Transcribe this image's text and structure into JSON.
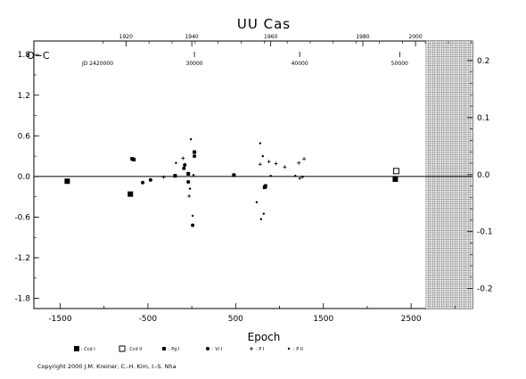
{
  "chart_data": {
    "type": "scatter",
    "title": "UU Cas",
    "ylabel": "O−C",
    "xlabel": "Epoch",
    "xlim": [
      -1800,
      3200
    ],
    "ylim": [
      -1.95,
      2.0
    ],
    "grid": false,
    "x_ticks": [
      "-1500",
      "-500",
      "500",
      "1500",
      "2500"
    ],
    "x_tick_values": [
      -1500,
      -500,
      500,
      1500,
      2500
    ],
    "y_ticks": [
      "1.8",
      "1.2",
      "0.6",
      "0.0",
      "-0.6",
      "-1.2",
      "-1.8"
    ],
    "y_tick_values": [
      1.8,
      1.2,
      0.6,
      0.0,
      -0.6,
      -1.2,
      -1.8
    ],
    "top_axis": {
      "year_ticks": [
        "1920",
        "1940",
        "1960",
        "1980",
        "2000"
      ],
      "year_epochs": [
        -750,
        0,
        900,
        1950,
        2550
      ],
      "jd_prefix": "JD 2420000",
      "jd_ticks": [
        "30000",
        "40000",
        "50000"
      ],
      "jd_epochs": [
        30,
        1230,
        2370
      ]
    },
    "right_axis": {
      "ticks": [
        "0.2",
        "0.1",
        "0.0",
        "-0.1",
        "-0.2"
      ],
      "values": [
        0.2,
        0.1,
        0.0,
        -0.1,
        -0.2
      ]
    },
    "hatched_region": [
      2670,
      3200
    ],
    "series": [
      {
        "name": "Ccd I",
        "marker": "filled-square",
        "points": [
          [
            -1420,
            -0.07
          ],
          [
            -700,
            -0.26
          ],
          [
            2320,
            -0.04
          ]
        ]
      },
      {
        "name": "Ccd II",
        "marker": "open-square",
        "points": [
          [
            2330,
            0.08
          ]
        ]
      },
      {
        "name": "Pg I",
        "marker": "small-filled-square",
        "points": [
          [
            -680,
            0.26
          ],
          [
            -660,
            0.25
          ],
          [
            -190,
            0.01
          ],
          [
            -40,
            0.04
          ],
          [
            30,
            0.36
          ],
          [
            480,
            0.02
          ],
          [
            830,
            -0.16
          ],
          [
            840,
            -0.14
          ]
        ]
      },
      {
        "name": "Vi I",
        "marker": "filled-circle",
        "points": [
          [
            -560,
            -0.09
          ],
          [
            -470,
            -0.05
          ],
          [
            -90,
            0.12
          ],
          [
            -80,
            0.17
          ],
          [
            -40,
            -0.08
          ],
          [
            10,
            -0.72
          ],
          [
            30,
            0.3
          ]
        ]
      },
      {
        "name": "P I",
        "marker": "plus",
        "points": [
          [
            -320,
            -0.01
          ],
          [
            -100,
            0.27
          ],
          [
            -30,
            -0.29
          ],
          [
            780,
            0.18
          ],
          [
            880,
            0.22
          ],
          [
            960,
            0.19
          ],
          [
            1060,
            0.14
          ],
          [
            1220,
            0.2
          ],
          [
            1280,
            0.26
          ],
          [
            1260,
            -0.01
          ]
        ]
      },
      {
        "name": "P II",
        "marker": "dot",
        "points": [
          [
            -180,
            0.2
          ],
          [
            -10,
            0.55
          ],
          [
            -20,
            -0.18
          ],
          [
            10,
            -0.58
          ],
          [
            20,
            0.02
          ],
          [
            740,
            -0.38
          ],
          [
            780,
            0.49
          ],
          [
            790,
            -0.63
          ],
          [
            820,
            -0.55
          ],
          [
            810,
            0.3
          ],
          [
            900,
            0.01
          ],
          [
            1180,
            0.01
          ],
          [
            1230,
            -0.03
          ]
        ]
      }
    ]
  },
  "legend": [
    {
      "label": ": Ccd I",
      "marker": "filled-square"
    },
    {
      "label": ": Ccd II",
      "marker": "open-square"
    },
    {
      "label": ": Pg I",
      "marker": "small-filled-square"
    },
    {
      "label": ": Vi I",
      "marker": "filled-circle"
    },
    {
      "label": ": P I",
      "marker": "plus"
    },
    {
      "label": ": P II",
      "marker": "dot"
    }
  ],
  "copyright": "Copyright 2000 J.M. Kreiner, C.-H. Kim, I.-S. Nha"
}
